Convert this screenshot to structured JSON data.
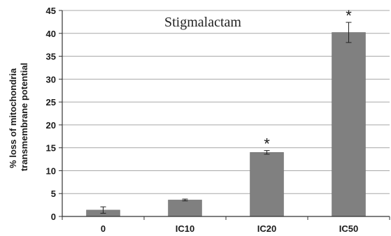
{
  "chart_data": {
    "type": "bar",
    "title": "Stigmalactam",
    "categories": [
      "0",
      "IC10",
      "IC20",
      "IC50"
    ],
    "values": [
      1.4,
      3.6,
      14.0,
      40.2
    ],
    "errors": [
      0.7,
      0.2,
      0.4,
      2.2
    ],
    "significance": [
      "",
      "",
      "*",
      "*"
    ],
    "ylabel_lines": [
      "% loss of mitochondria",
      "transmembrane potential"
    ],
    "xlabel": "",
    "ylim": [
      0,
      45
    ],
    "yticks": [
      0,
      5,
      10,
      15,
      20,
      25,
      30,
      35,
      40,
      45
    ],
    "grid": true,
    "bar_color": "#808080"
  }
}
